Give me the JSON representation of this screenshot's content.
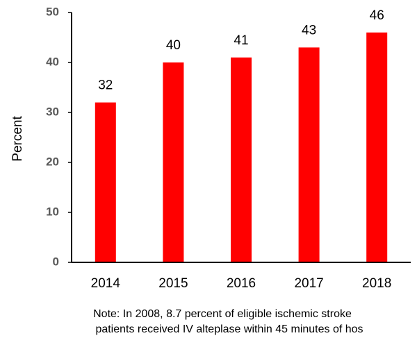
{
  "chart_data": {
    "type": "bar",
    "y_label": "Percent",
    "categories": [
      "2014",
      "2015",
      "2016",
      "2017",
      "2018"
    ],
    "values": [
      32,
      40,
      41,
      43,
      46
    ],
    "color": "#ff0000",
    "ylim": [
      0,
      50
    ],
    "yticks": [
      0,
      10,
      20,
      30,
      40,
      50
    ],
    "grid": false,
    "note": [
      "Note: In 2008, 8.7 percent of eligible ischemic stroke",
      "patients received IV alteplase within 45 minutes of hos"
    ]
  }
}
